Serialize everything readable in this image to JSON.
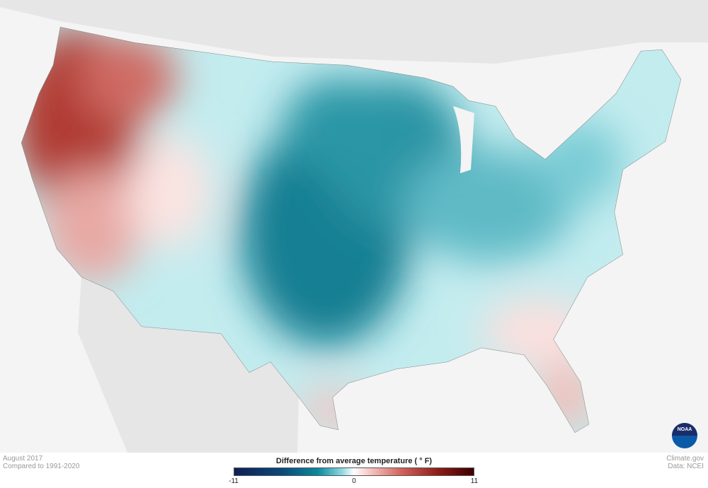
{
  "map": {
    "type": "choropleth",
    "region": "Contiguous United States",
    "variable": "Difference from average temperature"
  },
  "notes": {
    "date": "August 2017",
    "baseline": "Compared to 1991-2020"
  },
  "credits": {
    "site": "Climate.gov",
    "data": "Data: NCEI",
    "logo": "NOAA"
  },
  "legend": {
    "title": "Difference from average temperature  ( ° F)",
    "min": "-11",
    "mid": "0",
    "max": "11",
    "colors": {
      "cold": "#0f1e55",
      "cool": "#0b8a9c",
      "neutral": "#ffffff",
      "warm": "#d0615a",
      "hot": "#3d0000"
    }
  }
}
